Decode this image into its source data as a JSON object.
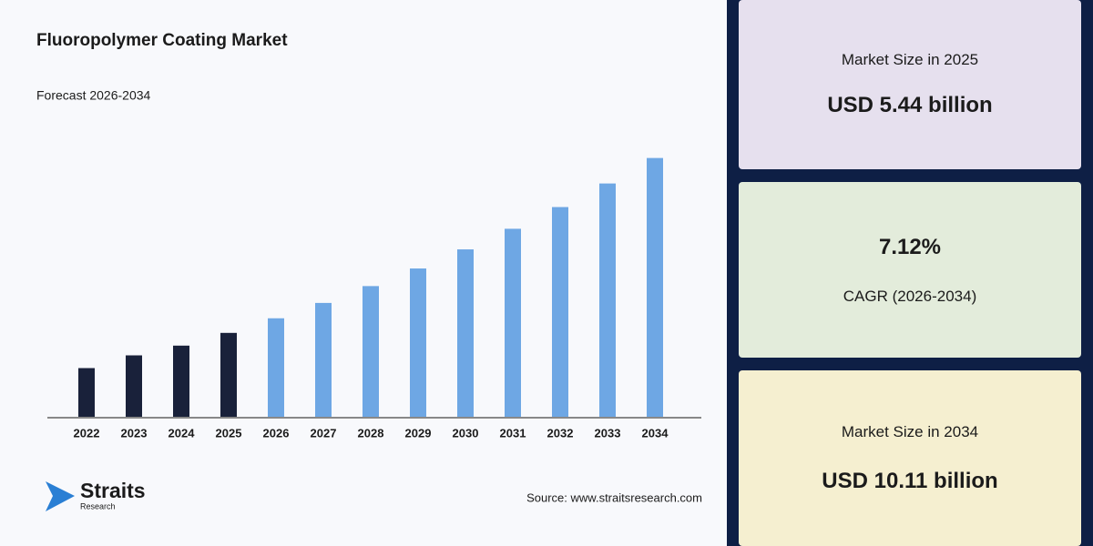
{
  "chart_data": {
    "type": "bar",
    "title": "Fluoropolymer Coating Market",
    "subtitle": "Forecast 2026-2034",
    "categories": [
      "2022",
      "2023",
      "2024",
      "2025",
      "2026",
      "2027",
      "2028",
      "2029",
      "2030",
      "2031",
      "2032",
      "2033",
      "2034"
    ],
    "values": [
      4.5,
      4.84,
      5.1,
      5.44,
      5.83,
      6.24,
      6.69,
      7.16,
      7.67,
      8.22,
      8.8,
      9.43,
      10.11
    ],
    "colors": [
      "#19213a",
      "#19213a",
      "#19213a",
      "#19213a",
      "#6ea7e4",
      "#6ea7e4",
      "#6ea7e4",
      "#6ea7e4",
      "#6ea7e4",
      "#6ea7e4",
      "#6ea7e4",
      "#6ea7e4",
      "#6ea7e4"
    ],
    "ylim": [
      3.2,
      11
    ],
    "source": "Source: www.straitsresearch.com"
  },
  "logo": {
    "name": "Straits",
    "sub": "Research"
  },
  "cards": [
    {
      "label": "Market Size in 2025",
      "value": "USD 5.44 billion"
    },
    {
      "value": "7.12%",
      "label": "CAGR (2026-2034)"
    },
    {
      "label": "Market Size in 2034",
      "value": "USD 10.11 billion"
    }
  ]
}
